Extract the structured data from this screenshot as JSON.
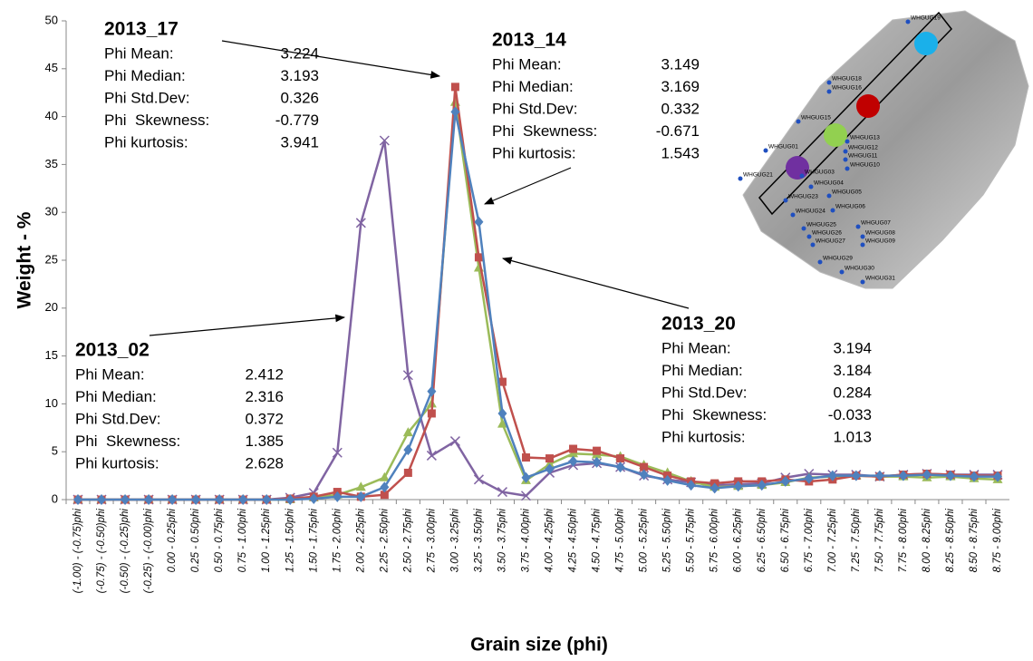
{
  "chart_data": {
    "type": "line",
    "x_label": "Grain size (phi)",
    "y_label": "Weight - %",
    "ylim": [
      0,
      50
    ],
    "yticks": [
      0,
      5,
      10,
      15,
      20,
      25,
      30,
      35,
      40,
      45,
      50
    ],
    "grid": false,
    "categories": [
      "(-1.00) - (-0.75)phi",
      "(-0.75) - (-0.50)phi",
      "(-0.50) - (-0.25)phi",
      "(-0.25) - (-0.00)phi",
      "0.00 - 0.25phi",
      "0.25 - 0.50phi",
      "0.50 - 0.75phi",
      "0.75 - 1.00phi",
      "1.00 - 1.25phi",
      "1.25 - 1.50phi",
      "1.50 - 1.75phi",
      "1.75 - 2.00phi",
      "2.00 - 2.25phi",
      "2.25 - 2.50phi",
      "2.50 - 2.75phi",
      "2.75 - 3.00phi",
      "3.00 - 3.25phi",
      "3.25 - 3.50phi",
      "3.50 - 3.75phi",
      "3.75 - 4.00phi",
      "4.00 - 4.25phi",
      "4.25 - 4.50phi",
      "4.50 - 4.75phi",
      "4.75 - 5.00phi",
      "5.00 - 5.25phi",
      "5.25 - 5.50phi",
      "5.50 - 5.75phi",
      "5.75 - 6.00phi",
      "6.00 - 6.25phi",
      "6.25 - 6.50phi",
      "6.50 - 6.75phi",
      "6.75 - 7.00phi",
      "7.00 - 7.25phi",
      "7.25 - 7.50phi",
      "7.50 - 7.75phi",
      "7.75 - 8.00phi",
      "8.00 - 8.25phi",
      "8.25 - 8.50phi",
      "8.50 - 8.75phi",
      "8.75 - 9.00phi"
    ],
    "series": [
      {
        "name": "2013_02",
        "color": "#8064a2",
        "title_color": "#7030a0",
        "marker": "x",
        "values": [
          0,
          0,
          0,
          0,
          0,
          0,
          0,
          0,
          0,
          0.2,
          0.7,
          4.9,
          28.9,
          37.5,
          13,
          4.6,
          6.1,
          2.1,
          0.8,
          0.4,
          2.8,
          3.6,
          3.8,
          3.4,
          2.5,
          2.1,
          1.8,
          1.5,
          1.6,
          1.7,
          2.3,
          2.7,
          2.6,
          2.6,
          2.4,
          2.6,
          2.7,
          2.6,
          2.6,
          2.6
        ],
        "stats": [
          {
            "label": "Phi Mean:",
            "value": 2.412
          },
          {
            "label": "Phi Median:",
            "value": 2.316
          },
          {
            "label": "Phi Std.Dev:",
            "value": 0.372
          },
          {
            "label": "Phi  Skewness:",
            "value": 1.385
          },
          {
            "label": "Phi kurtosis:",
            "value": 2.628
          }
        ]
      },
      {
        "name": "2013_14",
        "color": "#9bbb59",
        "title_color": "#92c04e",
        "marker": "triangle",
        "values": [
          0,
          0,
          0,
          0,
          0,
          0,
          0,
          0,
          0,
          0,
          0.2,
          0.5,
          1.3,
          2.3,
          7.0,
          10,
          41.5,
          24.2,
          7.9,
          2.0,
          3.7,
          4.8,
          4.7,
          4.5,
          3.6,
          2.8,
          1.9,
          1.3,
          1.4,
          1.5,
          1.8,
          2.3,
          2.4,
          2.5,
          2.4,
          2.4,
          2.3,
          2.4,
          2.2,
          2.1
        ],
        "stats": [
          {
            "label": "Phi Mean:",
            "value": 3.149
          },
          {
            "label": "Phi Median:",
            "value": 3.169
          },
          {
            "label": "Phi Std.Dev:",
            "value": 0.332
          },
          {
            "label": "Phi  Skewness:",
            "value": -0.671
          },
          {
            "label": "Phi kurtosis:",
            "value": 1.543
          }
        ]
      },
      {
        "name": "2013_17",
        "color": "#c0504d",
        "title_color": "#a01c1c",
        "marker": "square",
        "values": [
          0,
          0,
          0,
          0,
          0,
          0,
          0,
          0,
          0,
          0.1,
          0.3,
          0.8,
          0.3,
          0.5,
          2.8,
          9,
          43.1,
          25.3,
          12.3,
          4.4,
          4.3,
          5.3,
          5.1,
          4.3,
          3.4,
          2.5,
          1.9,
          1.7,
          1.9,
          1.9,
          2.1,
          1.9,
          2.1,
          2.5,
          2.4,
          2.6,
          2.7,
          2.6,
          2.5,
          2.5
        ],
        "stats": [
          {
            "label": "Phi Mean:",
            "value": 3.224
          },
          {
            "label": "Phi Median:",
            "value": 3.193
          },
          {
            "label": "Phi Std.Dev:",
            "value": 0.326
          },
          {
            "label": "Phi  Skewness:",
            "value": -0.779
          },
          {
            "label": "Phi kurtosis:",
            "value": 3.941
          }
        ]
      },
      {
        "name": "2013_20",
        "color": "#4f81bd",
        "title_color": "#1aaee8",
        "marker": "diamond",
        "values": [
          0,
          0,
          0,
          0,
          0,
          0,
          0,
          0,
          0,
          0,
          0.1,
          0.3,
          0.3,
          1.3,
          5.2,
          11.3,
          40.5,
          29,
          9,
          2.3,
          3.2,
          4,
          3.9,
          3.4,
          2.6,
          2.0,
          1.5,
          1.2,
          1.4,
          1.5,
          1.9,
          2.2,
          2.5,
          2.5,
          2.5,
          2.5,
          2.6,
          2.5,
          2.4,
          2.4
        ],
        "stats": [
          {
            "label": "Phi Mean:",
            "value": 3.194
          },
          {
            "label": "Phi Median:",
            "value": 3.184
          },
          {
            "label": "Phi Std.Dev:",
            "value": 0.284
          },
          {
            "label": "Phi  Skewness:",
            "value": -0.033
          },
          {
            "label": "Phi kurtosis:",
            "value": 1.013
          }
        ]
      }
    ],
    "inset_labels": [
      "WHGUG19",
      "WHGUG18",
      "WHGUG16",
      "WHGUG15",
      "WHGUG13",
      "WHGUG12",
      "WHGUG11",
      "WHGUG10",
      "WHGUG01",
      "WHGUG21",
      "WHGUG03",
      "WHGUG04",
      "WHGUG05",
      "WHGUG23",
      "WHGUG24",
      "WHGUG06",
      "WHGUG25",
      "WHGUG07",
      "WHGUG26",
      "WHGUG08",
      "WHGUG27",
      "WHGUG09",
      "WHGUG29",
      "WHGUG30",
      "WHGUG31"
    ]
  }
}
